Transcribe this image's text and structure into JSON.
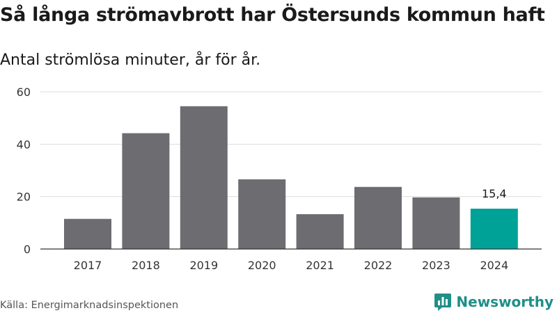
{
  "title": "Så långa strömavbrott har Östersunds kommun haft",
  "subtitle": "Antal strömlösa minuter, år för år.",
  "source": "Källa: Energimarknadsinspektionen",
  "brand": {
    "name": "Newsworthy",
    "icon": "bar-chart-logo-icon",
    "color": "#1f8f88"
  },
  "colors": {
    "bar": "#6d6c70",
    "highlight": "#00a197",
    "grid": "#dddddd",
    "axis": "#333333"
  },
  "chart_data": {
    "type": "bar",
    "categories": [
      "2017",
      "2018",
      "2019",
      "2020",
      "2021",
      "2022",
      "2023",
      "2024"
    ],
    "values": [
      11.5,
      44.2,
      54.5,
      26.6,
      13.3,
      23.7,
      19.7,
      15.4
    ],
    "highlight_index": 7,
    "data_labels": [
      {
        "index": 7,
        "text": "15,4"
      }
    ],
    "yticks": [
      0,
      20,
      40,
      60
    ],
    "ylim": [
      0,
      60
    ],
    "grid": true,
    "xlabel": "",
    "ylabel": ""
  }
}
